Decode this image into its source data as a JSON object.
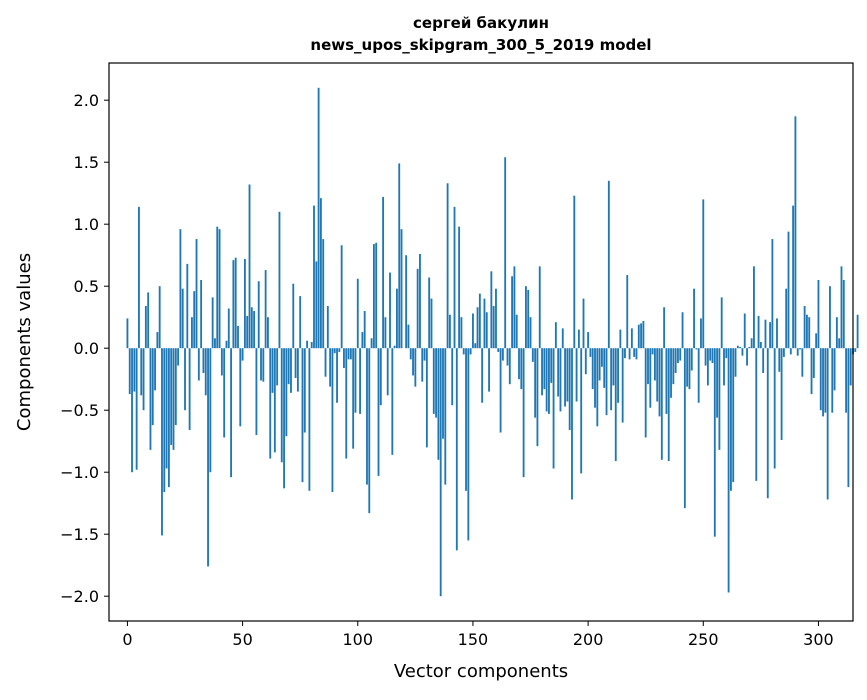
{
  "chart_data": {
    "type": "bar",
    "title": "сергей бакулин",
    "subtitle": "news_upos_skipgram_300_5_2019 model",
    "xlabel": "Vector components",
    "ylabel": "Components values",
    "xlim": [
      -8,
      315
    ],
    "ylim": [
      -2.2,
      2.3
    ],
    "xticks": [
      0,
      50,
      100,
      150,
      200,
      250,
      300
    ],
    "yticks": [
      -2.0,
      -1.5,
      -1.0,
      -0.5,
      0.0,
      0.5,
      1.0,
      1.5,
      2.0
    ],
    "ytick_labels": [
      "−2.0",
      "−1.5",
      "−1.0",
      "−0.5",
      "0.0",
      "0.5",
      "1.0",
      "1.5",
      "2.0"
    ],
    "grid": false,
    "bar_color": "#1f77b4",
    "values": [
      0.24,
      -0.37,
      -1.0,
      -0.35,
      -0.98,
      1.14,
      -0.38,
      -0.5,
      0.34,
      0.45,
      -0.82,
      -0.62,
      -0.34,
      0.13,
      0.5,
      -1.51,
      -1.16,
      -0.97,
      -1.12,
      -0.78,
      -0.82,
      -0.62,
      -0.14,
      0.96,
      0.48,
      -0.5,
      0.68,
      -0.66,
      0.25,
      0.46,
      0.88,
      -0.26,
      0.55,
      -0.2,
      -0.38,
      -1.76,
      -1.0,
      0.41,
      0.08,
      0.98,
      0.96,
      -0.22,
      -0.72,
      0.06,
      0.32,
      -1.04,
      0.71,
      0.73,
      0.18,
      -0.63,
      -0.1,
      0.72,
      0.26,
      1.32,
      0.33,
      0.3,
      -0.7,
      0.54,
      -0.26,
      -0.27,
      0.63,
      0.25,
      -0.89,
      -0.36,
      -0.84,
      -0.3,
      1.1,
      -0.92,
      -1.13,
      -0.71,
      -0.29,
      -0.36,
      0.52,
      -0.24,
      -0.35,
      0.42,
      -1.08,
      -0.68,
      0.06,
      -1.15,
      0.05,
      1.15,
      0.7,
      2.1,
      1.21,
      0.88,
      -0.23,
      0.34,
      -0.31,
      -1.16,
      -0.04,
      -0.44,
      -0.03,
      0.83,
      -0.16,
      -0.89,
      -0.09,
      -0.09,
      -0.81,
      -0.52,
      0.56,
      -0.53,
      0.13,
      0.3,
      -1.1,
      -1.33,
      0.08,
      0.84,
      0.85,
      -1.03,
      -0.46,
      1.22,
      0.25,
      -0.38,
      0.61,
      -0.86,
      0.02,
      0.48,
      1.49,
      0.96,
      0.0,
      0.75,
      0.19,
      -0.09,
      -0.22,
      -0.31,
      0.64,
      0.76,
      -0.27,
      -0.1,
      -0.8,
      0.57,
      0.4,
      -0.53,
      -0.56,
      -0.9,
      -2.0,
      -0.73,
      -1.1,
      1.33,
      0.27,
      -0.46,
      1.14,
      -1.63,
      0.98,
      0.25,
      -0.05,
      -1.15,
      -1.55,
      -0.05,
      0.28,
      0.04,
      0.33,
      0.44,
      -0.44,
      0.4,
      0.29,
      -0.35,
      0.62,
      0.34,
      0.48,
      -0.03,
      -0.68,
      -0.1,
      1.54,
      -0.14,
      -0.29,
      0.58,
      0.66,
      0.27,
      -0.25,
      -0.33,
      -1.04,
      0.5,
      0.47,
      0.25,
      -0.11,
      -0.56,
      -0.79,
      0.66,
      -0.38,
      -0.33,
      -0.51,
      -0.53,
      -0.28,
      -0.97,
      0.21,
      -0.39,
      -0.51,
      0.16,
      -0.47,
      -0.43,
      -0.66,
      -1.22,
      1.23,
      -0.43,
      0.15,
      -1.01,
      0.4,
      -0.21,
      0.13,
      -0.07,
      -0.33,
      -0.48,
      -0.63,
      -0.26,
      -0.15,
      -0.32,
      -0.54,
      1.35,
      -0.5,
      -0.3,
      -0.91,
      -0.44,
      0.15,
      -0.6,
      -0.08,
      0.59,
      -0.09,
      0.16,
      -0.07,
      -0.09,
      0.19,
      0.2,
      0.22,
      -0.72,
      -0.29,
      -0.48,
      -0.05,
      -0.26,
      -0.43,
      -0.55,
      -0.9,
      0.33,
      -0.53,
      -0.91,
      -0.4,
      -0.29,
      -0.2,
      -0.12,
      -0.1,
      0.29,
      -1.29,
      -0.31,
      -0.33,
      -0.18,
      0.48,
      -0.01,
      -0.44,
      0.24,
      1.2,
      -0.14,
      -0.3,
      -0.1,
      -0.12,
      -1.52,
      -0.56,
      -0.82,
      0.41,
      -0.3,
      -0.08,
      -1.97,
      -1.15,
      -1.08,
      -0.23,
      0.02,
      0.01,
      -0.06,
      0.28,
      -0.14,
      0.01,
      0.08,
      0.66,
      -1.07,
      0.26,
      0.05,
      -0.2,
      0.23,
      -1.21,
      0.21,
      0.88,
      -0.97,
      0.24,
      -0.19,
      -0.74,
      -0.07,
      0.48,
      0.94,
      -0.05,
      1.15,
      1.87,
      -0.06,
      -0.01,
      -0.23,
      0.34,
      0.27,
      0.25,
      -0.37,
      -0.24,
      0.12,
      0.55,
      -0.5,
      -0.55,
      -0.52,
      -1.22,
      0.5,
      -0.52,
      -0.34,
      0.25,
      0.08,
      0.66,
      0.55,
      -0.52,
      -1.12,
      -0.3,
      -0.05,
      -0.03,
      0.27
    ]
  }
}
